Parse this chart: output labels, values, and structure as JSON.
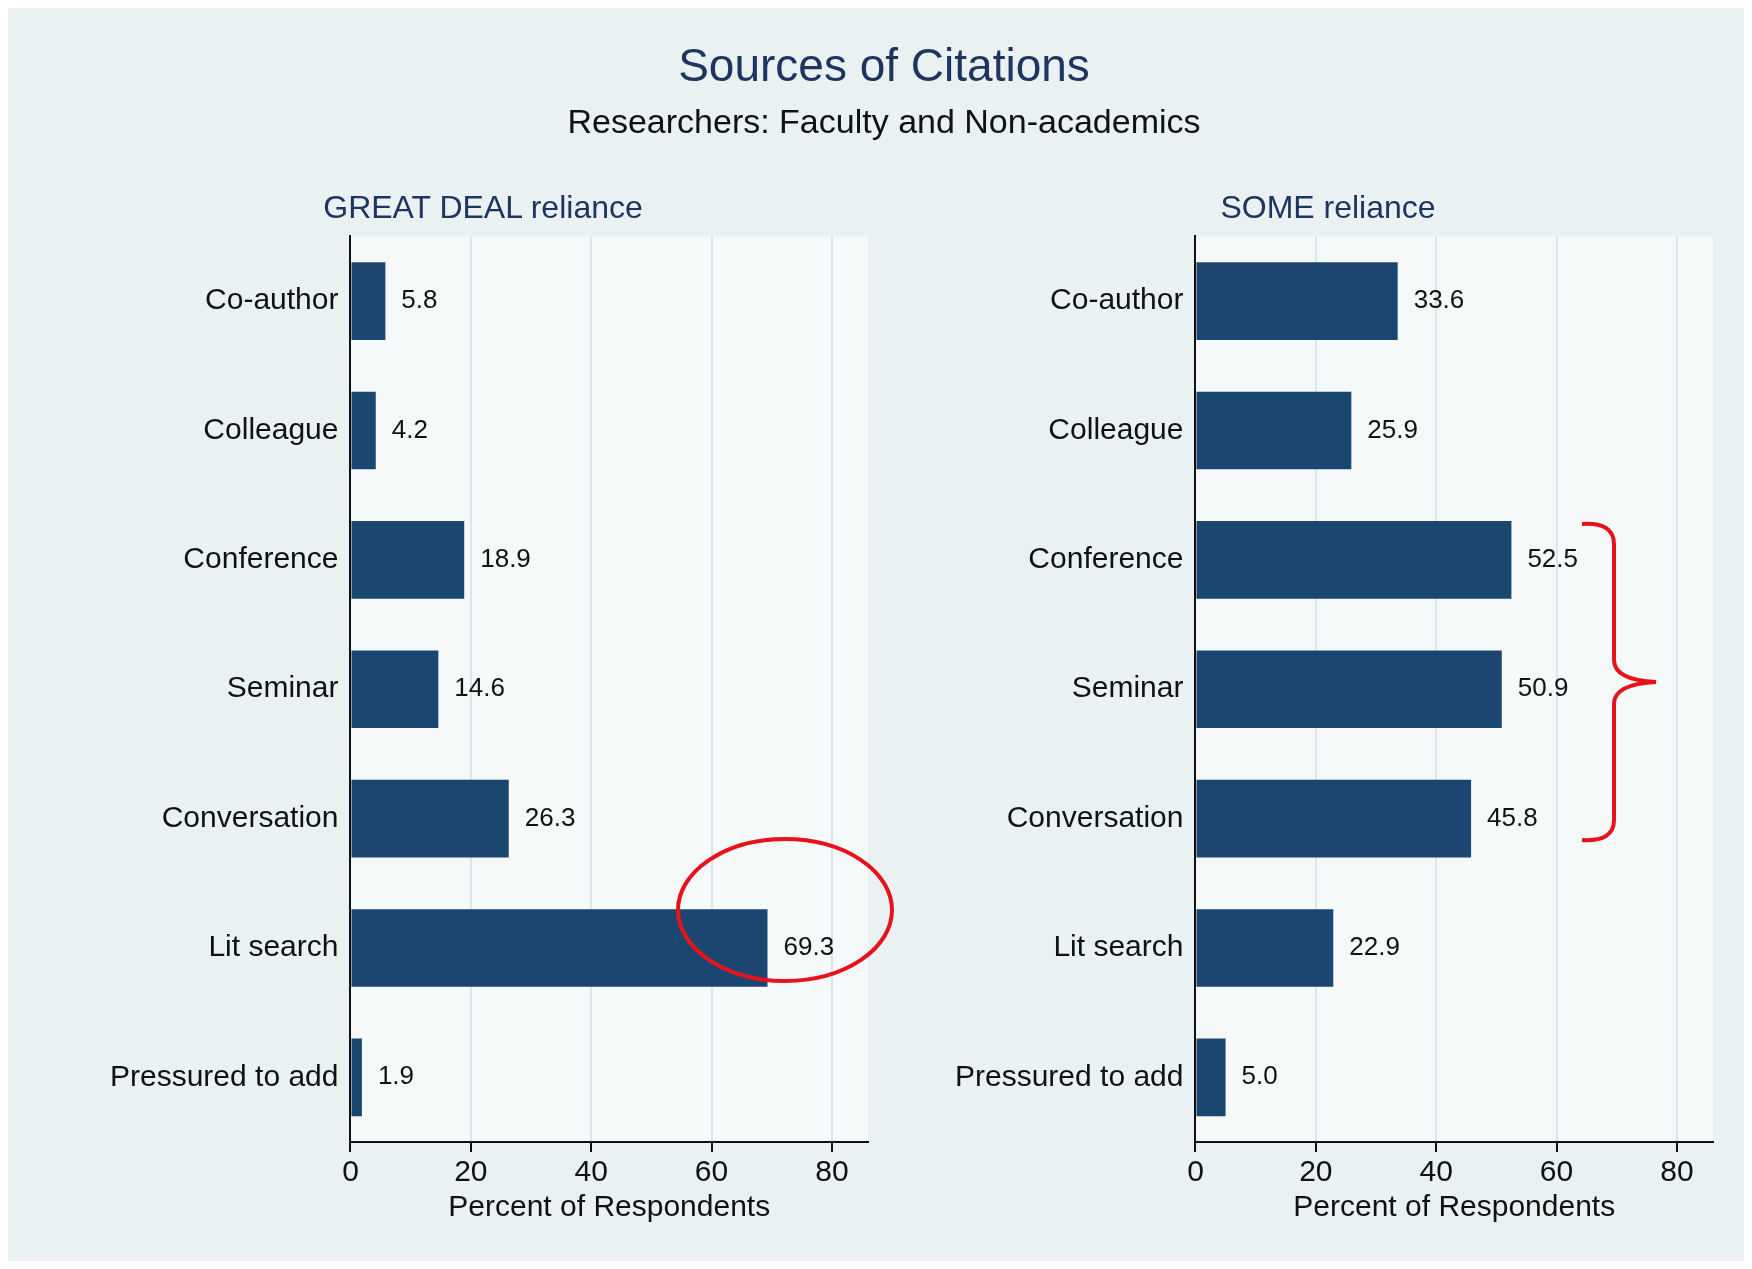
{
  "chart_data": [
    {
      "type": "other",
      "title": "Sources of Citations",
      "subtitle": "Researchers: Faculty and Non-academics"
    },
    {
      "type": "bar",
      "orientation": "horizontal",
      "title": "GREAT DEAL reliance",
      "xlabel": "Percent of Respondents",
      "categories": [
        "Co-author",
        "Colleague",
        "Conference",
        "Seminar",
        "Conversation",
        "Lit search",
        "Pressured to add"
      ],
      "values": [
        5.8,
        4.2,
        18.9,
        14.6,
        26.3,
        69.3,
        1.9
      ],
      "color": "#1a4670",
      "xlim": [
        0,
        86
      ],
      "xticks": [
        0,
        20,
        40,
        60,
        80
      ],
      "grid": "x",
      "data_labels": true
    },
    {
      "type": "bar",
      "orientation": "horizontal",
      "title": "SOME reliance",
      "xlabel": "Percent of Respondents",
      "categories": [
        "Co-author",
        "Colleague",
        "Conference",
        "Seminar",
        "Conversation",
        "Lit search",
        "Pressured to add"
      ],
      "values": [
        33.6,
        25.9,
        52.5,
        50.9,
        45.8,
        22.9,
        5.0
      ],
      "value_labels": [
        "33.6",
        "25.9",
        "52.5",
        "50.9",
        "45.8",
        "22.9",
        "5.0"
      ],
      "color": "#1a4670",
      "xlim": [
        0,
        86
      ],
      "xticks": [
        0,
        20,
        40,
        60,
        80
      ],
      "grid": "x"
    }
  ]
}
